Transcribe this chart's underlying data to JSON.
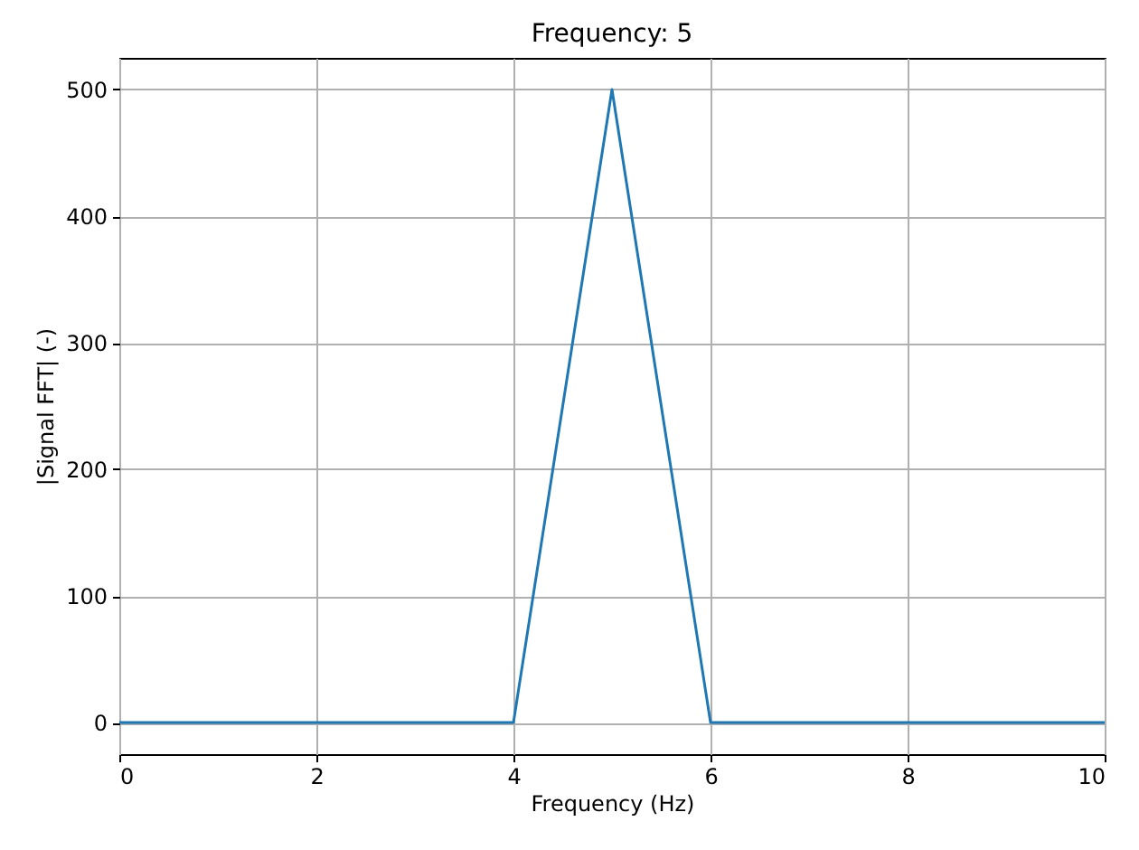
{
  "chart_data": {
    "type": "line",
    "title": "Frequency: 5",
    "xlabel": "Frequency (Hz)",
    "ylabel": "|Signal FFT| (-)",
    "x": [
      0,
      1,
      2,
      3,
      4,
      5,
      6,
      7,
      8,
      9,
      10
    ],
    "series": [
      {
        "color": "#1f77b4",
        "values": [
          0,
          0,
          0,
          0,
          0,
          500,
          0,
          0,
          0,
          0,
          0
        ]
      }
    ],
    "xlim": [
      0,
      10
    ],
    "xticks": [
      0,
      2,
      4,
      6,
      8,
      10
    ],
    "ylim": [
      -25,
      525
    ],
    "yticks": [
      0,
      100,
      200,
      300,
      400,
      500
    ],
    "grid": true,
    "marker": "none",
    "line_style": "solid",
    "legend": false
  }
}
